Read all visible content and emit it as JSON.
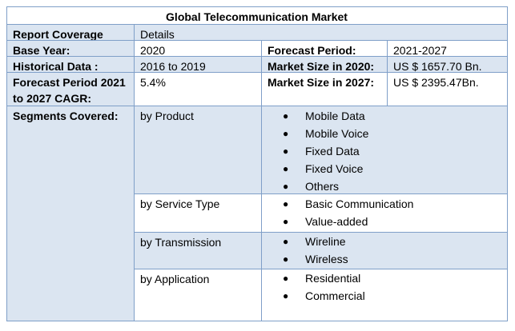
{
  "title": "Global Telecommunication Market",
  "header": {
    "left": "Report Coverage",
    "right": "Details"
  },
  "rows": {
    "base_year": {
      "label": "Base Year:",
      "value": "2020",
      "label2": "Forecast Period:",
      "value2": "2021-2027"
    },
    "historical": {
      "label": "Historical Data :",
      "value": "2016 to 2019",
      "label2": "Market Size in 2020:",
      "value2": "US $ 1657.70 Bn."
    },
    "cagr": {
      "label": "Forecast Period 2021 to 2027 CAGR:",
      "value": "5.4%",
      "label2": "Market Size in 2027:",
      "value2": "US $ 2395.47Bn."
    }
  },
  "segments": {
    "label": "Segments Covered:",
    "groups": [
      {
        "name": "by Product",
        "items": [
          "Mobile Data",
          "Mobile Voice",
          "Fixed Data",
          "Fixed Voice",
          "Others"
        ]
      },
      {
        "name": "by Service Type",
        "items": [
          "Basic Communication",
          "Value-added"
        ]
      },
      {
        "name": "by Transmission",
        "items": [
          "Wireline",
          "Wireless"
        ]
      },
      {
        "name": "by Application",
        "items": [
          "Residential",
          "Commercial"
        ]
      }
    ]
  },
  "bullet_glyph": "●"
}
